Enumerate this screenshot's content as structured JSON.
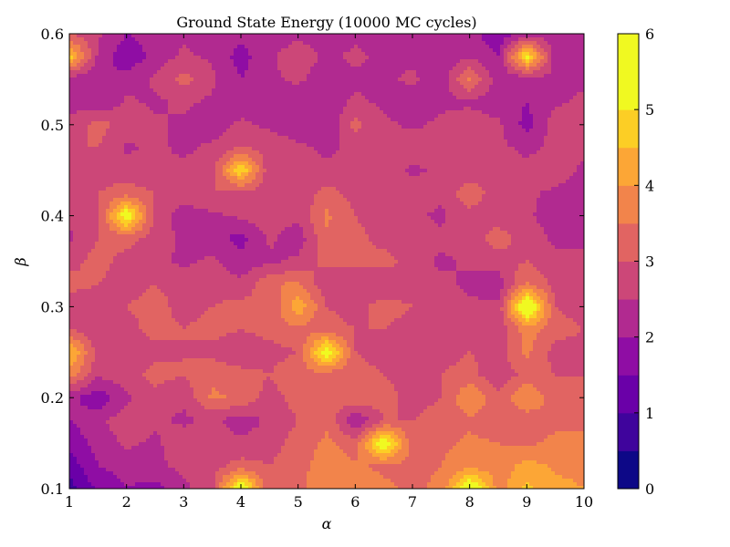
{
  "chart_data": {
    "type": "heatmap",
    "style": "filled contour",
    "title": "Ground State Energy (10000 MC cycles)",
    "xlabel": "α",
    "ylabel": "β",
    "xlim": [
      1,
      10
    ],
    "ylim": [
      0.1,
      0.6
    ],
    "x_ticks": [
      "1",
      "2",
      "3",
      "4",
      "5",
      "6",
      "7",
      "8",
      "9",
      "10"
    ],
    "y_ticks": [
      "0.1",
      "0.2",
      "0.3",
      "0.4",
      "0.5",
      "0.6"
    ],
    "colorbar": {
      "ticks": [
        "0",
        "1",
        "2",
        "3",
        "4",
        "5",
        "6"
      ],
      "levels": [
        0,
        0.5,
        1,
        1.5,
        2,
        2.5,
        3,
        3.5,
        4,
        4.5,
        5,
        5.5,
        6
      ],
      "colors": [
        "#0d0887",
        "#3f049c",
        "#6a00a8",
        "#8f0da4",
        "#b12a90",
        "#cc4778",
        "#e16462",
        "#f2844b",
        "#fca636",
        "#fcce25",
        "#f0f921",
        "#f0f921"
      ],
      "min": 0,
      "max": 6
    },
    "x": [
      1,
      1.5,
      2,
      2.5,
      3,
      3.5,
      4,
      4.5,
      5,
      5.5,
      6,
      6.5,
      7,
      7.5,
      8,
      8.5,
      9,
      9.5,
      10
    ],
    "y": [
      0.1,
      0.125,
      0.15,
      0.175,
      0.2,
      0.225,
      0.25,
      0.275,
      0.3,
      0.325,
      0.35,
      0.375,
      0.4,
      0.425,
      0.45,
      0.475,
      0.5,
      0.525,
      0.55,
      0.575,
      0.6
    ],
    "z": [
      [
        0.8,
        1.6,
        2.0,
        1.8,
        2.4,
        2.8,
        5.8,
        3.0,
        3.3,
        4.0,
        3.8,
        3.6,
        3.4,
        3.6,
        5.8,
        3.8,
        4.6,
        4.2,
        4.0
      ],
      [
        1.2,
        2.0,
        2.2,
        2.4,
        2.6,
        2.8,
        3.2,
        3.0,
        3.3,
        3.8,
        3.6,
        3.4,
        3.4,
        3.5,
        3.8,
        3.7,
        4.2,
        3.9,
        3.8
      ],
      [
        1.6,
        2.2,
        2.6,
        2.4,
        2.8,
        3.0,
        2.6,
        2.8,
        3.2,
        3.6,
        3.2,
        5.6,
        3.2,
        3.4,
        3.6,
        3.5,
        3.4,
        3.6,
        3.6
      ],
      [
        2.0,
        2.4,
        2.8,
        2.6,
        2.4,
        2.6,
        2.2,
        2.6,
        3.0,
        3.4,
        2.0,
        3.0,
        3.0,
        3.2,
        3.4,
        3.2,
        3.2,
        3.4,
        3.4
      ],
      [
        2.2,
        1.6,
        2.4,
        2.8,
        2.6,
        3.6,
        3.4,
        2.8,
        3.2,
        3.2,
        3.4,
        3.2,
        2.8,
        3.0,
        4.0,
        3.2,
        4.0,
        3.2,
        3.2
      ],
      [
        3.8,
        2.6,
        2.8,
        3.2,
        3.0,
        3.4,
        3.2,
        3.0,
        3.4,
        3.2,
        3.2,
        3.0,
        2.8,
        3.0,
        3.2,
        2.6,
        3.2,
        3.0,
        3.0
      ],
      [
        4.6,
        2.8,
        2.6,
        2.8,
        3.0,
        2.8,
        2.6,
        2.8,
        3.0,
        5.6,
        3.0,
        2.8,
        2.6,
        2.8,
        3.0,
        2.8,
        3.6,
        2.8,
        2.8
      ],
      [
        3.0,
        2.6,
        2.8,
        3.2,
        3.0,
        3.2,
        3.0,
        3.2,
        3.4,
        3.2,
        3.0,
        3.0,
        2.8,
        2.8,
        2.6,
        2.6,
        3.8,
        3.2,
        3.0
      ],
      [
        2.6,
        2.8,
        3.0,
        3.2,
        2.8,
        3.0,
        3.2,
        3.0,
        4.4,
        3.0,
        2.8,
        3.2,
        3.0,
        2.8,
        2.6,
        2.6,
        6.0,
        3.0,
        2.8
      ],
      [
        3.2,
        3.0,
        2.8,
        3.0,
        2.8,
        2.8,
        2.6,
        3.4,
        3.6,
        2.6,
        3.0,
        2.6,
        2.8,
        2.6,
        2.4,
        2.2,
        3.6,
        2.8,
        2.6
      ],
      [
        2.8,
        3.2,
        2.8,
        2.6,
        2.4,
        2.6,
        2.2,
        2.4,
        2.6,
        3.2,
        3.0,
        3.2,
        2.8,
        2.4,
        2.6,
        2.8,
        3.0,
        2.6,
        2.6
      ],
      [
        2.4,
        3.0,
        3.2,
        2.8,
        2.4,
        2.2,
        1.8,
        2.6,
        2.2,
        3.4,
        3.2,
        2.8,
        2.8,
        2.6,
        2.8,
        3.2,
        2.8,
        2.4,
        2.4
      ],
      [
        2.6,
        2.8,
        5.6,
        2.8,
        2.2,
        2.4,
        2.6,
        2.8,
        2.6,
        3.6,
        3.0,
        2.6,
        2.6,
        2.4,
        2.8,
        2.8,
        2.6,
        2.2,
        2.2
      ],
      [
        2.8,
        3.0,
        3.2,
        3.0,
        2.8,
        3.0,
        2.8,
        2.8,
        2.6,
        3.2,
        2.8,
        2.6,
        2.8,
        2.6,
        3.4,
        2.6,
        2.6,
        2.4,
        2.2
      ],
      [
        3.0,
        2.8,
        2.8,
        2.6,
        2.6,
        2.8,
        5.0,
        2.6,
        2.8,
        2.6,
        2.8,
        2.8,
        2.4,
        2.6,
        2.6,
        2.8,
        2.6,
        2.8,
        2.4
      ],
      [
        3.0,
        3.0,
        2.4,
        2.6,
        2.4,
        2.6,
        3.0,
        2.8,
        2.6,
        2.4,
        2.6,
        2.6,
        2.8,
        2.6,
        2.8,
        2.6,
        2.4,
        2.6,
        2.6
      ],
      [
        2.6,
        3.2,
        2.8,
        2.6,
        2.4,
        2.2,
        2.6,
        2.4,
        2.2,
        2.0,
        3.2,
        2.6,
        2.4,
        2.6,
        2.8,
        2.6,
        1.8,
        2.8,
        2.8
      ],
      [
        2.4,
        2.0,
        2.6,
        2.4,
        2.6,
        2.4,
        2.2,
        2.4,
        2.2,
        2.2,
        2.6,
        2.4,
        2.2,
        2.4,
        2.4,
        2.2,
        2.0,
        2.4,
        2.6
      ],
      [
        2.2,
        2.0,
        2.2,
        2.6,
        3.2,
        2.6,
        2.0,
        2.4,
        2.6,
        2.2,
        2.4,
        2.4,
        2.6,
        2.2,
        3.6,
        2.2,
        2.2,
        2.4,
        2.4
      ],
      [
        4.8,
        2.4,
        1.6,
        2.2,
        2.6,
        2.4,
        1.8,
        2.4,
        2.8,
        2.4,
        2.6,
        2.4,
        2.4,
        2.2,
        2.4,
        2.0,
        5.2,
        2.2,
        2.2
      ],
      [
        3.0,
        2.6,
        2.0,
        2.2,
        2.4,
        2.0,
        2.2,
        2.2,
        2.4,
        2.2,
        2.4,
        2.2,
        2.2,
        2.4,
        2.2,
        1.6,
        2.2,
        2.2,
        2.0
      ]
    ]
  }
}
